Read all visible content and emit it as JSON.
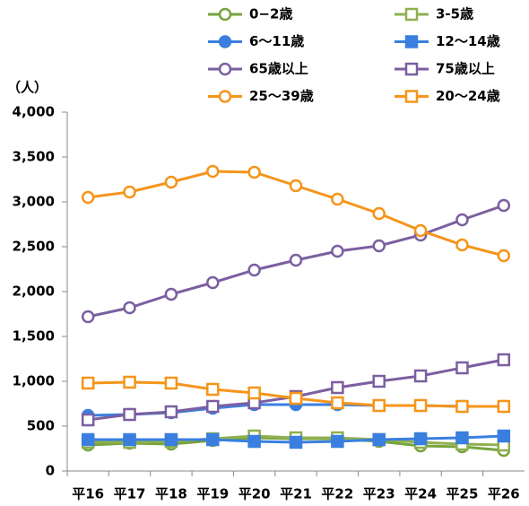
{
  "chart_data": {
    "type": "line",
    "y_label": "（人）",
    "categories": [
      "平16",
      "平17",
      "平18",
      "平19",
      "平20",
      "平21",
      "平22",
      "平23",
      "平24",
      "平25",
      "平26"
    ],
    "ylim": [
      0,
      4000
    ],
    "yticks": [
      0,
      500,
      {
        "value": 1000,
        "label": "1,000"
      },
      {
        "value": 1500,
        "label": "1,500"
      },
      {
        "value": 2000,
        "label": "2,000"
      },
      {
        "value": 2500,
        "label": "2,500"
      },
      {
        "value": 3000,
        "label": "3,000"
      },
      {
        "value": 3500,
        "label": "3,500"
      },
      {
        "value": 4000,
        "label": "4,000"
      }
    ],
    "series": [
      {
        "name": "0−2歳",
        "color": "#77a33c",
        "marker": "circle",
        "filled": false,
        "values": [
          290,
          310,
          300,
          340,
          370,
          360,
          360,
          330,
          280,
          270,
          230
        ]
      },
      {
        "name": "3-5歳",
        "color": "#8fb050",
        "marker": "square",
        "filled": false,
        "values": [
          320,
          320,
          330,
          360,
          390,
          370,
          370,
          350,
          320,
          300,
          290
        ]
      },
      {
        "name": "6～11歳",
        "color": "#3a7fe0",
        "marker": "circle",
        "filled": true,
        "values": [
          620,
          630,
          650,
          700,
          740,
          740,
          740,
          730,
          730,
          720,
          720
        ]
      },
      {
        "name": "12～14歳",
        "color": "#3a7fe0",
        "marker": "square",
        "filled": true,
        "values": [
          350,
          350,
          350,
          350,
          330,
          320,
          330,
          350,
          360,
          370,
          390
        ]
      },
      {
        "name": "65歳以上",
        "color": "#7b5fa0",
        "marker": "circle",
        "filled": false,
        "values": [
          1720,
          1820,
          1970,
          2100,
          2240,
          2350,
          2450,
          2510,
          2630,
          2800,
          2960
        ]
      },
      {
        "name": "75歳以上",
        "color": "#7b5fa0",
        "marker": "square",
        "filled": false,
        "values": [
          570,
          630,
          660,
          720,
          760,
          830,
          930,
          1000,
          1060,
          1150,
          1240
        ]
      },
      {
        "name": "25～39歳",
        "color": "#f5951a",
        "marker": "circle",
        "filled": false,
        "values": [
          3050,
          3110,
          3220,
          3340,
          3330,
          3180,
          3030,
          2870,
          2680,
          2520,
          2400
        ]
      },
      {
        "name": "20～24歳",
        "color": "#f5951a",
        "marker": "square",
        "filled": false,
        "values": [
          980,
          990,
          980,
          910,
          870,
          810,
          760,
          730,
          730,
          720,
          720
        ]
      }
    ]
  }
}
